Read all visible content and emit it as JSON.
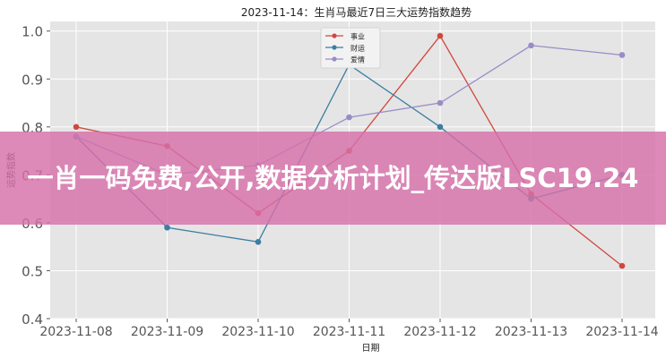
{
  "banner": {
    "text": "一肖一码免费,公开,数据分析计划_传达版LSC19.24"
  },
  "colors": {
    "plot_bg": "#e5e5e5",
    "grid": "#ffffff",
    "axis_text": "#555555",
    "banner_bg": "#d670aa"
  },
  "chart_data": {
    "type": "line",
    "title": "2023-11-14：生肖马最近7日三大运势指数趋势",
    "xlabel": "日期",
    "ylabel": "运势指数",
    "categories": [
      "2023-11-08",
      "2023-11-09",
      "2023-11-10",
      "2023-11-11",
      "2023-11-12",
      "2023-11-13",
      "2023-11-14"
    ],
    "yticks": [
      "0.4",
      "0.5",
      "0.6",
      "0.7",
      "0.8",
      "0.9",
      "1.0"
    ],
    "ylim": [
      0.4,
      1.02
    ],
    "grid": true,
    "legend_position": "top-center",
    "series": [
      {
        "name": "事业",
        "color": "#d1473d",
        "values": [
          0.8,
          0.76,
          0.62,
          0.75,
          0.99,
          0.66,
          0.51
        ]
      },
      {
        "name": "财运",
        "color": "#3b7ea1",
        "values": [
          0.78,
          0.59,
          0.56,
          0.93,
          0.8,
          0.65,
          0.7
        ]
      },
      {
        "name": "爱情",
        "color": "#9a8bc8",
        "values": [
          0.78,
          0.7,
          0.72,
          0.82,
          0.85,
          0.97,
          0.95
        ]
      }
    ]
  }
}
